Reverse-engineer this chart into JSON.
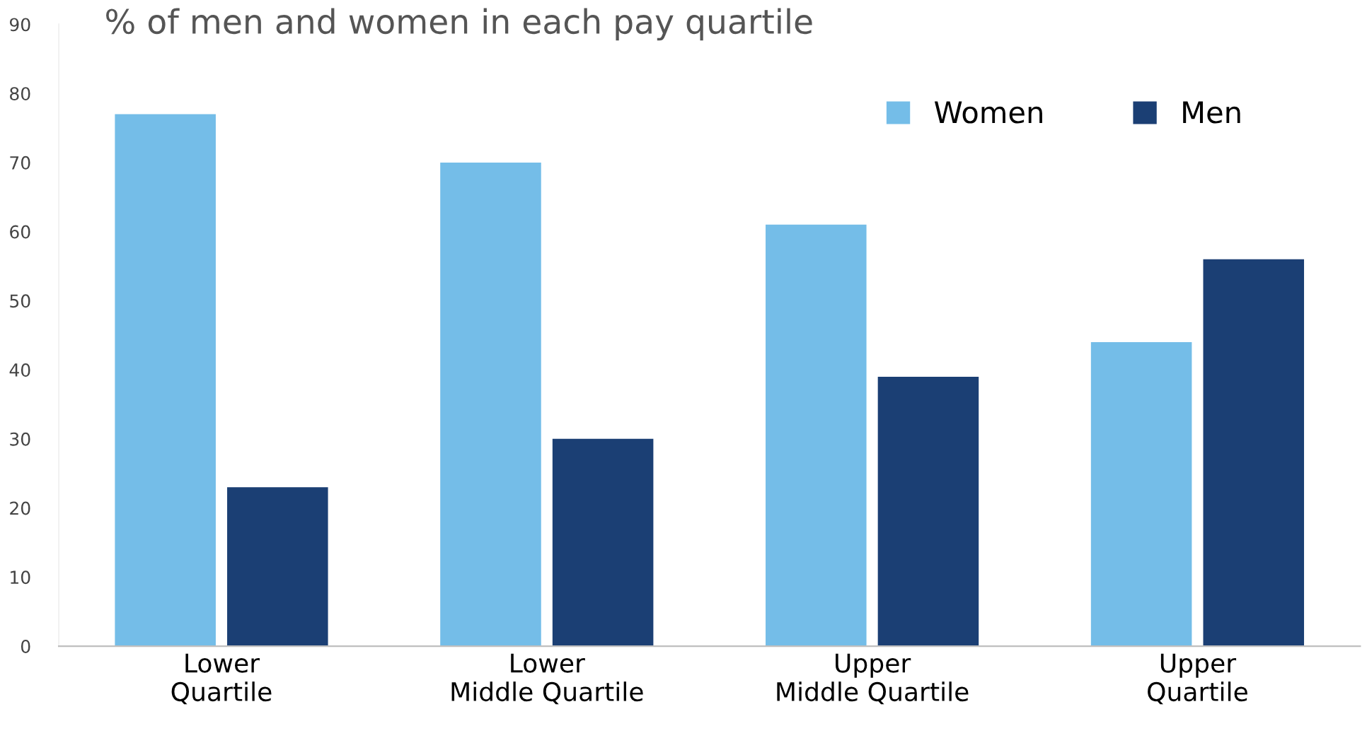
{
  "chart_data": {
    "type": "bar",
    "title": "% of men and women in each pay quartile",
    "categories": [
      "Lower\nQuartile",
      "Lower\nMiddle Quartile",
      "Upper\nMiddle Quartile",
      "Upper\nQuartile"
    ],
    "series": [
      {
        "name": "Women",
        "color": "#74bde8",
        "values": [
          77,
          70,
          61,
          44
        ]
      },
      {
        "name": "Men",
        "color": "#1b3f74",
        "values": [
          23,
          30,
          39,
          56
        ]
      }
    ],
    "ylim": [
      0,
      90
    ],
    "yticks": [
      0,
      10,
      20,
      30,
      40,
      50,
      60,
      70,
      80,
      90
    ],
    "grid": false,
    "legend": "top right"
  }
}
